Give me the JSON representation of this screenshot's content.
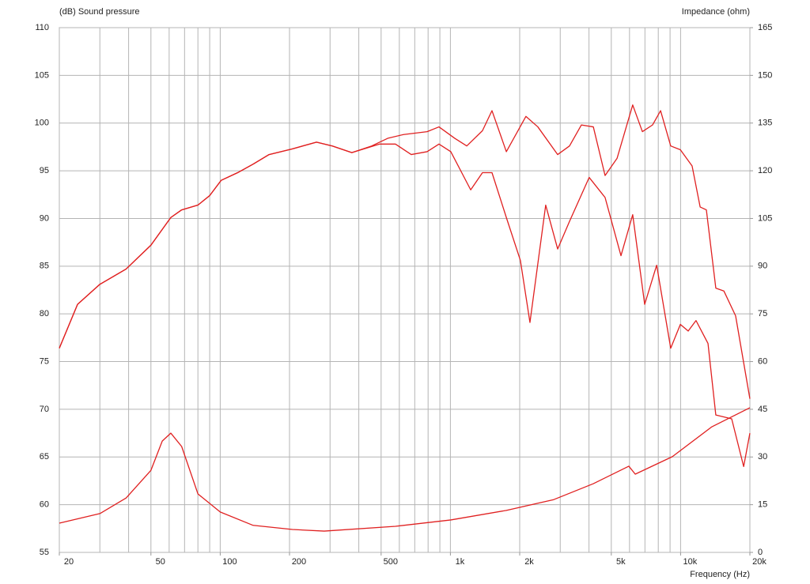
{
  "chart_data": {
    "type": "line",
    "title": "(dB)  Sound pressure",
    "y2_label": "Impedance  (ohm)",
    "x_label": "Frequency  (Hz)",
    "log_x": true,
    "grid": true,
    "color": "#e02020",
    "xlim": [
      20,
      20000
    ],
    "xticks": [
      20,
      50,
      100,
      200,
      500,
      {
        "value": 1000,
        "label": "1k"
      },
      {
        "value": 2000,
        "label": "2k"
      },
      {
        "value": 5000,
        "label": "5k"
      },
      {
        "value": 10000,
        "label": "10k"
      },
      {
        "value": 20000,
        "label": "20k"
      }
    ],
    "xgrid": [
      20,
      30,
      40,
      50,
      60,
      70,
      80,
      90,
      100,
      200,
      300,
      400,
      500,
      600,
      700,
      800,
      900,
      1000,
      2000,
      3000,
      4000,
      5000,
      6000,
      7000,
      8000,
      9000,
      10000,
      20000
    ],
    "ylim": [
      55,
      110
    ],
    "yticks": [
      55,
      60,
      65,
      70,
      75,
      80,
      85,
      90,
      95,
      100,
      105,
      110
    ],
    "y2lim": [
      0,
      165
    ],
    "y2ticks": [
      0,
      15,
      30,
      45,
      60,
      75,
      90,
      105,
      120,
      135,
      150,
      165
    ],
    "series": [
      {
        "color": "#e02020",
        "x": [
          20,
          24,
          30,
          39,
          50,
          61,
          68,
          80,
          90,
          101,
          119,
          139,
          163,
          206,
          262,
          307,
          373,
          455,
          534,
          626,
          792,
          892,
          1045,
          1178,
          1378,
          1516,
          1750,
          2128,
          2398,
          2924,
          3292,
          3706,
          4178,
          4698,
          5296,
          6194,
          6824,
          7552,
          8186,
          9058,
          9978,
          11220,
          12162,
          12942,
          14224,
          15418,
          17338,
          20000
        ],
        "values": [
          76.4,
          81.0,
          83.1,
          84.7,
          87.2,
          90.1,
          90.9,
          91.4,
          92.4,
          94.0,
          94.8,
          95.7,
          96.7,
          97.3,
          98.0,
          97.6,
          96.9,
          97.6,
          98.4,
          98.8,
          99.1,
          99.6,
          98.4,
          97.6,
          99.2,
          101.3,
          97.0,
          100.7,
          99.6,
          96.7,
          97.6,
          99.8,
          99.6,
          94.5,
          96.3,
          101.9,
          99.1,
          99.8,
          101.3,
          97.6,
          97.2,
          95.5,
          91.2,
          90.9,
          82.7,
          82.4,
          79.8,
          71.1
        ]
      },
      {
        "color": "#e02020",
        "x": [
          20,
          24,
          30,
          39,
          50,
          61,
          68,
          80,
          90,
          101,
          119,
          139,
          163,
          206,
          262,
          307,
          373,
          493,
          577,
          676,
          792,
          892,
          1004,
          1225,
          1378,
          1516,
          1750,
          2014,
          2216,
          2594,
          2924,
          3292,
          4008,
          4698,
          5508,
          6194,
          6982,
          7872,
          9058,
          9978,
          10790,
          11668,
          13154,
          14224,
          16674,
          18794,
          20000
        ],
        "values": [
          76.4,
          81.0,
          83.1,
          84.7,
          87.2,
          90.1,
          90.9,
          91.4,
          92.4,
          94.0,
          94.8,
          95.7,
          96.7,
          97.3,
          98.0,
          97.6,
          96.9,
          97.8,
          97.8,
          96.7,
          97.0,
          97.8,
          97.0,
          93.0,
          94.8,
          94.8,
          90.1,
          85.6,
          79.1,
          91.4,
          86.8,
          89.7,
          94.3,
          92.2,
          86.1,
          90.4,
          81.0,
          85.1,
          76.4,
          78.9,
          78.2,
          79.3,
          76.9,
          69.4,
          69.0,
          64.0,
          67.5
        ]
      },
      {
        "color": "#e02020",
        "axis": "y2",
        "x": [
          20,
          30,
          39,
          50,
          56,
          61,
          68,
          80,
          100,
          139,
          206,
          283,
          577,
          1004,
          1750,
          2812,
          4178,
          5958,
          6354,
          9206,
          13678,
          20000
        ],
        "values": [
          9.2,
          12.2,
          17.1,
          25.8,
          35.0,
          37.5,
          33.3,
          18.4,
          12.7,
          8.5,
          7.2,
          6.7,
          8.2,
          10.2,
          13.2,
          16.6,
          21.6,
          27.1,
          24.6,
          30.1,
          39.5,
          45.5
        ]
      }
    ]
  }
}
